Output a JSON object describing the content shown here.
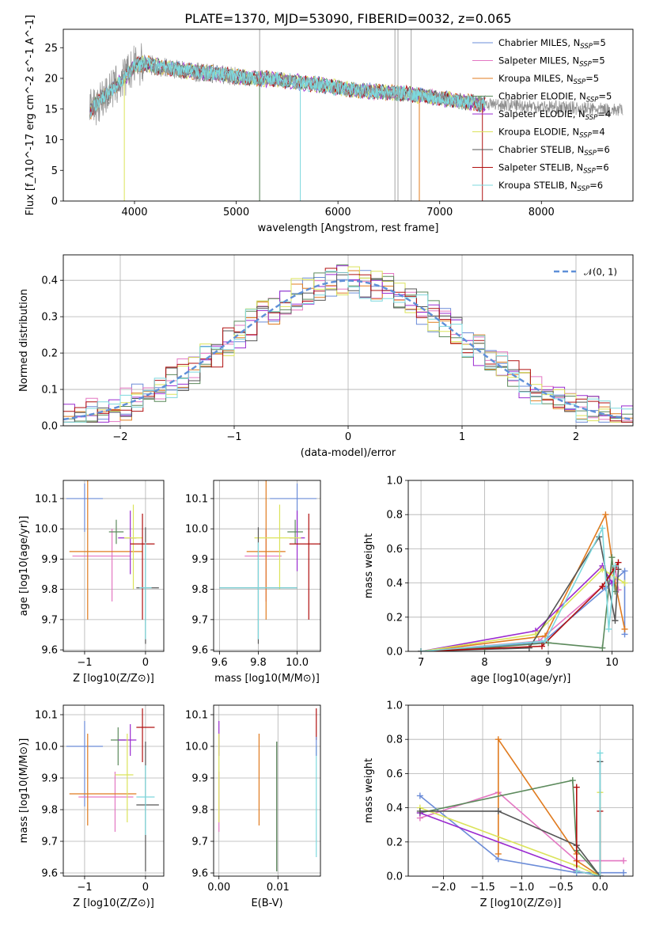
{
  "figure": {
    "title": "PLATE=1370, MJD=53090, FIBERID=0032, z=0.065"
  },
  "colors": {
    "Chabrier MILES": "#6b8cd8",
    "Salpeter MILES": "#e377c2",
    "Kroupa MILES": "#e07b1f",
    "Chabrier ELODIE": "#5c8a5c",
    "Salpeter ELODIE": "#9a2bd0",
    "Kroupa ELODIE": "#dbe35a",
    "Chabrier STELIB": "#555555",
    "Salpeter STELIB": "#b01010",
    "Kroupa STELIB": "#7dd8dd",
    "gaussian": "#5f8fd8",
    "data": "#8c8c8c"
  },
  "chart_data": [
    {
      "id": "spectrum",
      "type": "line",
      "title": "PLATE=1370, MJD=53090, FIBERID=0032, z=0.065",
      "xlabel": "wavelength [Angstrom, rest frame]",
      "ylabel": "Flux [f_λ10^-17 erg cm^-2 s^-1 A^-1]",
      "xlim": [
        3300,
        8900
      ],
      "ylim": [
        0,
        28
      ],
      "xticks": [
        4000,
        5000,
        6000,
        7000,
        8000
      ],
      "yticks": [
        0,
        5,
        10,
        15,
        20,
        25
      ],
      "grid": false,
      "legend_position": "top-right",
      "continuum": {
        "x": [
          3560,
          3600,
          3700,
          3800,
          3900,
          4000,
          4100,
          4200,
          4400,
          4600,
          4800,
          5000,
          5200,
          5400,
          5600,
          5800,
          6000,
          6200,
          6400,
          6600,
          6800,
          7000,
          7200,
          7400
        ],
        "y": [
          14.5,
          15.5,
          17,
          18.5,
          20,
          22,
          22.5,
          22,
          21.5,
          21,
          20.8,
          20.3,
          20,
          19.8,
          19.4,
          19,
          18.5,
          18,
          17.8,
          17.6,
          17.2,
          16.8,
          16.3,
          15.9
        ]
      },
      "data_extent": [
        3560,
        8800
      ],
      "series": [
        {
          "name": "Chabrier MILES, N_SSP=5"
        },
        {
          "name": "Salpeter MILES, N_SSP=5"
        },
        {
          "name": "Kroupa MILES, N_SSP=5"
        },
        {
          "name": "Chabrier ELODIE, N_SSP=5"
        },
        {
          "name": "Salpeter ELODIE, N_SSP=4"
        },
        {
          "name": "Kroupa ELODIE, N_SSP=4"
        },
        {
          "name": "Chabrier STELIB, N_SSP=6"
        },
        {
          "name": "Salpeter STELIB, N_SSP=6"
        },
        {
          "name": "Kroupa STELIB, N_SSP=6"
        }
      ],
      "model_dips": [
        {
          "series": "Kroupa ELODIE",
          "x": 3900
        },
        {
          "series": "Chabrier ELODIE",
          "x": 5230
        },
        {
          "series": "Kroupa STELIB",
          "x": 5630
        },
        {
          "series": "Kroupa MILES",
          "x": 6800
        },
        {
          "series": "Salpeter STELIB",
          "x": 7420
        }
      ]
    },
    {
      "id": "residuals",
      "type": "histogram",
      "xlabel": "(data-model)/error",
      "ylabel": "Normed distribution",
      "xlim": [
        -2.5,
        2.5
      ],
      "ylim": [
        0,
        0.47
      ],
      "xticks": [
        -2,
        -1,
        0,
        1,
        2
      ],
      "yticks": [
        0.0,
        0.1,
        0.2,
        0.3,
        0.4
      ],
      "grid": true,
      "legend": [
        {
          "name": "𝒩(0, 1)"
        }
      ],
      "legend_position": "top-right",
      "bin_edges_start": -2.5,
      "bin_width": 0.1
    },
    {
      "id": "age-vs-z",
      "type": "scatter",
      "xlabel": "Z [log10(Z/Z⊙)]",
      "ylabel": "age [log10(age/yr)]",
      "xlim": [
        -1.35,
        0.3
      ],
      "ylim": [
        9.595,
        10.16
      ],
      "xticks": [
        -1,
        0
      ],
      "yticks": [
        9.6,
        9.7,
        9.8,
        9.9,
        10.0,
        10.1
      ],
      "grid": true,
      "points": [
        {
          "series": "Chabrier MILES",
          "x": -1.0,
          "y": 10.1,
          "xerr": [
            0.3,
            0.3
          ],
          "yerr": [
            0.11,
            0.05
          ]
        },
        {
          "series": "Salpeter MILES",
          "x": -0.55,
          "y": 9.91,
          "xerr": [
            0.65,
            0.3
          ],
          "yerr": [
            0.15,
            0.09
          ]
        },
        {
          "series": "Kroupa MILES",
          "x": -0.95,
          "y": 9.925,
          "xerr": [
            0.3,
            0.9
          ],
          "yerr": [
            0.225,
            0.235
          ]
        },
        {
          "series": "Chabrier ELODIE",
          "x": -0.48,
          "y": 9.99,
          "xerr": [
            0.12,
            0.12
          ],
          "yerr": [
            0.04,
            0.04
          ]
        },
        {
          "series": "Salpeter ELODIE",
          "x": -0.25,
          "y": 9.97,
          "xerr": [
            0.2,
            0.1
          ],
          "yerr": [
            0.12,
            0.09
          ]
        },
        {
          "series": "Kroupa ELODIE",
          "x": -0.2,
          "y": 9.97,
          "xerr": [
            0.15,
            0.15
          ],
          "yerr": [
            0.17,
            0.11
          ]
        },
        {
          "series": "Chabrier STELIB",
          "x": -0.0,
          "y": 9.805,
          "xerr": [
            0.15,
            0.22
          ],
          "yerr": [
            0.185,
            0.2
          ]
        },
        {
          "series": "Salpeter STELIB",
          "x": -0.05,
          "y": 9.95,
          "xerr": [
            0.2,
            0.2
          ],
          "yerr": [
            0.25,
            0.1
          ]
        },
        {
          "series": "Kroupa STELIB",
          "x": 0.0,
          "y": 9.805,
          "xerr": [
            0.1,
            0.1
          ],
          "yerr": [
            0.17,
            0.15
          ]
        }
      ]
    },
    {
      "id": "age-vs-mass",
      "type": "scatter",
      "xlabel": "mass [log10(M/M⊙)]",
      "ylabel": "",
      "xlim": [
        9.57,
        10.12
      ],
      "ylim": [
        9.595,
        10.16
      ],
      "xticks": [
        9.6,
        9.8,
        10.0
      ],
      "yticks": [
        9.6,
        9.7,
        9.8,
        9.9,
        10.0,
        10.1
      ],
      "grid": true,
      "points": [
        {
          "series": "Chabrier MILES",
          "x": 10.0,
          "y": 10.1,
          "xerr": [
            0.14,
            0.1
          ],
          "yerr": [
            0.11,
            0.05
          ]
        },
        {
          "series": "Salpeter MILES",
          "x": 9.84,
          "y": 9.91,
          "xerr": [
            0.11,
            0.08
          ],
          "yerr": [
            0.15,
            0.09
          ]
        },
        {
          "series": "Kroupa MILES",
          "x": 9.84,
          "y": 9.925,
          "xerr": [
            0.1,
            0.1
          ],
          "yerr": [
            0.225,
            0.235
          ]
        },
        {
          "series": "Chabrier ELODIE",
          "x": 9.99,
          "y": 9.99,
          "xerr": [
            0.04,
            0.04
          ],
          "yerr": [
            0.04,
            0.04
          ]
        },
        {
          "series": "Salpeter ELODIE",
          "x": 10.0,
          "y": 9.97,
          "xerr": [
            0.04,
            0.04
          ],
          "yerr": [
            0.11,
            0.09
          ]
        },
        {
          "series": "Kroupa ELODIE",
          "x": 9.91,
          "y": 9.97,
          "xerr": [
            0.13,
            0.11
          ],
          "yerr": [
            0.17,
            0.11
          ]
        },
        {
          "series": "Chabrier STELIB",
          "x": 9.8,
          "y": 9.805,
          "xerr": [
            0.2,
            0.2
          ],
          "yerr": [
            0.185,
            0.2
          ]
        },
        {
          "series": "Salpeter STELIB",
          "x": 10.06,
          "y": 9.95,
          "xerr": [
            0.1,
            0.06
          ],
          "yerr": [
            0.25,
            0.1
          ]
        },
        {
          "series": "Kroupa STELIB",
          "x": 9.8,
          "y": 9.805,
          "xerr": [
            0.2,
            0.2
          ],
          "yerr": [
            0.17,
            0.15
          ]
        }
      ]
    },
    {
      "id": "mass-weight-vs-age",
      "type": "line",
      "xlabel": "age [log10(age/yr)]",
      "ylabel": "mass weight",
      "xlim": [
        6.8,
        10.33
      ],
      "ylim": [
        0,
        1.0
      ],
      "xticks": [
        7,
        8,
        9,
        10
      ],
      "yticks": [
        0.0,
        0.2,
        0.4,
        0.6,
        0.8,
        1.0
      ],
      "grid": true,
      "series": [
        {
          "series": "Chabrier MILES",
          "x": [
            7.0,
            8.9,
            9.9,
            10.2,
            10.2
          ],
          "y": [
            0.0,
            0.05,
            0.37,
            0.47,
            0.1
          ]
        },
        {
          "series": "Salpeter MILES",
          "x": [
            7.0,
            8.85,
            9.85,
            10.05,
            10.1
          ],
          "y": [
            0.0,
            0.06,
            0.38,
            0.49,
            0.36
          ]
        },
        {
          "series": "Kroupa MILES",
          "x": [
            7.0,
            8.95,
            9.9,
            10.05,
            10.2
          ],
          "y": [
            0.0,
            0.09,
            0.8,
            0.4,
            0.13
          ]
        },
        {
          "series": "Chabrier ELODIE",
          "x": [
            7.0,
            8.0,
            9.0,
            9.85,
            10.0,
            10.05
          ],
          "y": [
            0.0,
            0.02,
            0.05,
            0.02,
            0.55,
            0.35
          ]
        },
        {
          "series": "Salpeter ELODIE",
          "x": [
            7.0,
            8.8,
            9.85,
            10.0
          ],
          "y": [
            0.0,
            0.12,
            0.5,
            0.4
          ]
        },
        {
          "series": "Kroupa ELODIE",
          "x": [
            7.0,
            8.8,
            9.85,
            10.2
          ],
          "y": [
            0.0,
            0.1,
            0.48,
            0.4
          ]
        },
        {
          "series": "Chabrier STELIB",
          "x": [
            7.0,
            8.7,
            9.8,
            10.05,
            10.1
          ],
          "y": [
            0.0,
            0.02,
            0.67,
            0.18,
            0.48
          ]
        },
        {
          "series": "Salpeter STELIB",
          "x": [
            7.0,
            8.9,
            9.85,
            10.1,
            10.05
          ],
          "y": [
            0.0,
            0.03,
            0.38,
            0.52,
            0.48
          ]
        },
        {
          "series": "Kroupa STELIB",
          "x": [
            7.0,
            8.95,
            9.85,
            9.95,
            10.05
          ],
          "y": [
            0.0,
            0.06,
            0.72,
            0.13,
            0.5
          ]
        }
      ]
    },
    {
      "id": "mass-vs-z",
      "type": "scatter",
      "xlabel": "Z [log10(Z/Z⊙)]",
      "ylabel": "mass [log10(M/M⊙)]",
      "xlim": [
        -1.35,
        0.3
      ],
      "ylim": [
        9.59,
        10.13
      ],
      "xticks": [
        -1,
        0
      ],
      "yticks": [
        9.6,
        9.7,
        9.8,
        9.9,
        10.0,
        10.1
      ],
      "grid": true,
      "points": [
        {
          "series": "Chabrier MILES",
          "x": -1.0,
          "y": 10.0,
          "xerr": [
            0.3,
            0.3
          ],
          "yerr": [
            0.19,
            0.08
          ]
        },
        {
          "series": "Salpeter MILES",
          "x": -0.5,
          "y": 9.84,
          "xerr": [
            0.6,
            0.3
          ],
          "yerr": [
            0.11,
            0.08
          ]
        },
        {
          "series": "Kroupa MILES",
          "x": -0.95,
          "y": 9.85,
          "xerr": [
            0.3,
            0.8
          ],
          "yerr": [
            0.1,
            0.19
          ]
        },
        {
          "series": "Chabrier ELODIE",
          "x": -0.45,
          "y": 10.02,
          "xerr": [
            0.12,
            0.12
          ],
          "yerr": [
            0.08,
            0.04
          ]
        },
        {
          "series": "Salpeter ELODIE",
          "x": -0.25,
          "y": 10.02,
          "xerr": [
            0.2,
            0.1
          ],
          "yerr": [
            0.05,
            0.05
          ]
        },
        {
          "series": "Kroupa ELODIE",
          "x": -0.3,
          "y": 9.91,
          "xerr": [
            0.2,
            0.1
          ],
          "yerr": [
            0.15,
            0.13
          ]
        },
        {
          "series": "Chabrier STELIB",
          "x": -0.0,
          "y": 9.815,
          "xerr": [
            0.15,
            0.22
          ],
          "yerr": [
            0.21,
            0.2
          ]
        },
        {
          "series": "Salpeter STELIB",
          "x": -0.05,
          "y": 10.06,
          "xerr": [
            0.1,
            0.2
          ],
          "yerr": [
            0.11,
            0.06
          ]
        },
        {
          "series": "Kroupa STELIB",
          "x": 0.0,
          "y": 9.84,
          "xerr": [
            0.15,
            0.15
          ],
          "yerr": [
            0.12,
            0.1
          ]
        }
      ]
    },
    {
      "id": "mass-vs-ebv",
      "type": "scatter",
      "xlabel": "E(B-V)",
      "ylabel": "",
      "xlim": [
        -0.0009,
        0.0172
      ],
      "ylim": [
        9.59,
        10.13
      ],
      "xticks": [
        0.0,
        0.01
      ],
      "yticks": [
        9.6,
        9.7,
        9.8,
        9.9,
        10.0,
        10.1
      ],
      "grid": true,
      "points": [
        {
          "series": "Salpeter MILES",
          "x": 0.0,
          "y": 9.84,
          "xerr": [
            0,
            0
          ],
          "yerr": [
            0.11,
            0.08
          ]
        },
        {
          "series": "Salpeter ELODIE",
          "x": 0.0,
          "y": 10.02,
          "xerr": [
            0,
            0
          ],
          "yerr": [
            0.05,
            0.06
          ]
        },
        {
          "series": "Kroupa ELODIE",
          "x": 0.0,
          "y": 9.91,
          "xerr": [
            0,
            0
          ],
          "yerr": [
            0.15,
            0.13
          ]
        },
        {
          "series": "Kroupa MILES",
          "x": 0.0068,
          "y": 9.85,
          "xerr": [
            0,
            0
          ],
          "yerr": [
            0.1,
            0.19
          ]
        },
        {
          "series": "Chabrier STELIB",
          "x": 0.0098,
          "y": 9.815,
          "xerr": [
            0,
            0
          ],
          "yerr": [
            0.21,
            0.2
          ]
        },
        {
          "series": "Chabrier ELODIE",
          "x": 0.0098,
          "y": 9.815,
          "xerr": [
            0,
            0
          ],
          "yerr": [
            0.21,
            0.2
          ]
        },
        {
          "series": "Salpeter STELIB",
          "x": 0.0165,
          "y": 10.06,
          "xerr": [
            0,
            0
          ],
          "yerr": [
            0.04,
            0.06
          ]
        },
        {
          "series": "Kroupa STELIB",
          "x": 0.0165,
          "y": 9.84,
          "xerr": [
            0,
            0
          ],
          "yerr": [
            0.19,
            0.16
          ]
        },
        {
          "series": "Chabrier MILES",
          "x": 0.0165,
          "y": 10.0,
          "xerr": [
            0,
            0
          ],
          "yerr": [
            0.03,
            0.03
          ]
        }
      ]
    },
    {
      "id": "mass-weight-vs-z",
      "type": "line",
      "xlabel": "Z [log10(Z/Z⊙)]",
      "ylabel": "mass weight",
      "xlim": [
        -2.45,
        0.42
      ],
      "ylim": [
        0,
        1.0
      ],
      "xticks": [
        -2.0,
        -1.5,
        -1.0,
        -0.5,
        0.0
      ],
      "yticks": [
        0.0,
        0.2,
        0.4,
        0.6,
        0.8,
        1.0
      ],
      "grid": true,
      "series": [
        {
          "series": "Chabrier MILES",
          "x": [
            -2.3,
            -1.3,
            -0.3,
            0.3
          ],
          "y": [
            0.47,
            0.1,
            0.02,
            0.02
          ]
        },
        {
          "series": "Salpeter MILES",
          "x": [
            -2.3,
            -1.3,
            -0.3,
            0.3
          ],
          "y": [
            0.34,
            0.49,
            0.09,
            0.09
          ]
        },
        {
          "series": "Kroupa MILES",
          "x": [
            -1.3,
            -1.3,
            -0.3,
            -0.3,
            0.0
          ],
          "y": [
            0.13,
            0.8,
            0.13,
            0.09,
            0.0
          ]
        },
        {
          "series": "Chabrier ELODIE",
          "x": [
            -2.3,
            -0.35,
            -0.3,
            0.0
          ],
          "y": [
            0.37,
            0.56,
            0.15,
            0.0
          ]
        },
        {
          "series": "Salpeter ELODIE",
          "x": [
            -2.3,
            -0.3,
            0.0
          ],
          "y": [
            0.37,
            0.03,
            0.0
          ]
        },
        {
          "series": "Kroupa ELODIE",
          "x": [
            -2.3,
            -0.3,
            0.0,
            0.0
          ],
          "y": [
            0.4,
            0.06,
            0.0,
            0.49
          ]
        },
        {
          "series": "Chabrier STELIB",
          "x": [
            -2.3,
            -1.3,
            -0.3,
            0.0,
            0.0
          ],
          "y": [
            0.38,
            0.38,
            0.18,
            0.0,
            0.67
          ]
        },
        {
          "series": "Salpeter STELIB",
          "x": [
            -0.3,
            -0.3,
            0.0,
            0.0
          ],
          "y": [
            0.52,
            0.03,
            0.0,
            0.38
          ]
        },
        {
          "series": "Kroupa STELIB",
          "x": [
            -0.3,
            0.0,
            0.0
          ],
          "y": [
            0.03,
            0.0,
            0.72
          ]
        }
      ]
    }
  ]
}
